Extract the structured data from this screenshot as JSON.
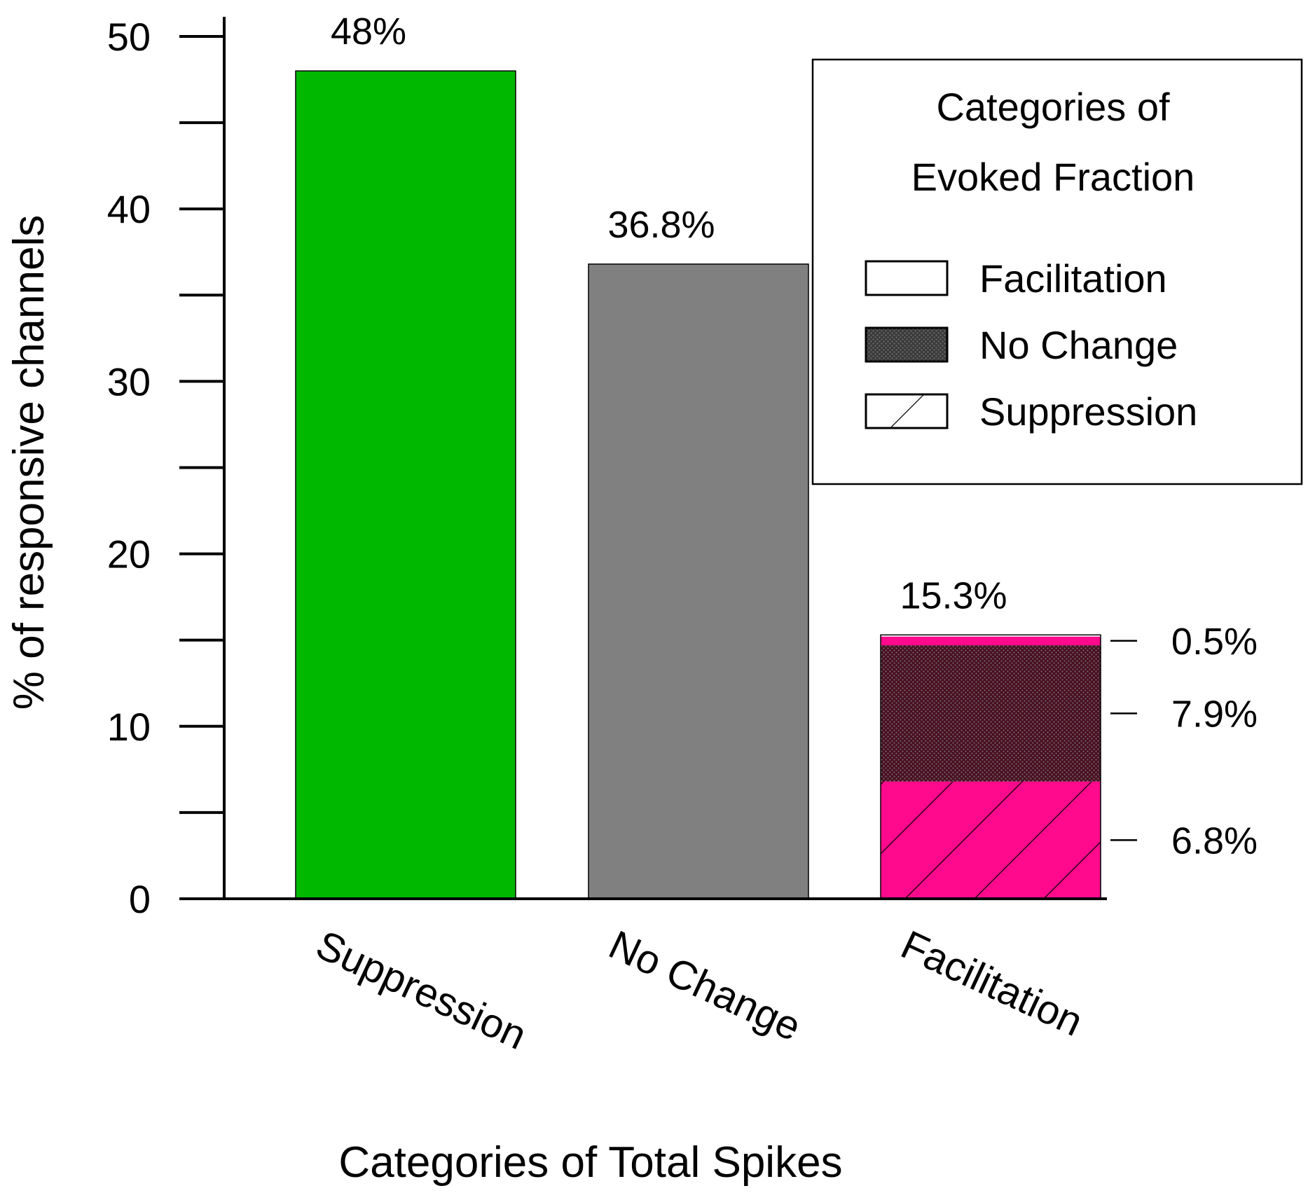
{
  "chart_data": {
    "type": "bar",
    "xlabel": "Categories of Total Spikes",
    "ylabel": "% of responsive channels",
    "ylim": [
      0,
      50
    ],
    "yticks": [
      0,
      10,
      20,
      30,
      40,
      50
    ],
    "grid": false,
    "categories": [
      "Suppression",
      "No Change",
      "Facilitation"
    ],
    "bars": [
      {
        "category": "Suppression",
        "value": 48,
        "label": "48%",
        "color": "#00b800"
      },
      {
        "category": "No Change",
        "value": 36.8,
        "label": "36.8%",
        "color": "#808080"
      },
      {
        "category": "Facilitation",
        "value": 15.3,
        "label": "15.3%",
        "stack": [
          {
            "name": "Suppression",
            "value": 6.8,
            "label": "6.8%",
            "color": "#ff0a8c",
            "pattern": "hatch"
          },
          {
            "name": "No Change",
            "value": 7.9,
            "label": "7.9%",
            "color": "#4a0f22",
            "pattern": "dots"
          },
          {
            "name": "Facilitation",
            "value": 0.5,
            "label": "0.5%",
            "color": "#ff0a8c",
            "pattern": "none"
          }
        ]
      }
    ],
    "legend": {
      "title_lines": [
        "Categories of",
        "Evoked Fraction"
      ],
      "placement": "top-right",
      "entries": [
        {
          "name": "Facilitation",
          "pattern": "none"
        },
        {
          "name": "No Change",
          "pattern": "dots"
        },
        {
          "name": "Suppression",
          "pattern": "hatch"
        }
      ]
    }
  }
}
